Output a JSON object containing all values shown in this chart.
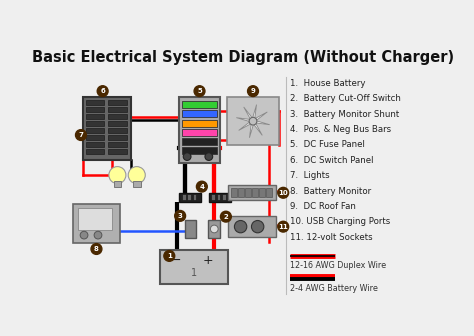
{
  "title": "Basic Electrical System Diagram (Without Charger)",
  "title_fontsize": 10.5,
  "bg_color": "#efefef",
  "legend_items": [
    "1.  House Battery",
    "2.  Battery Cut-Off Switch",
    "3.  Battery Monitor Shunt",
    "4.  Pos. & Neg Bus Bars",
    "5.  DC Fuse Panel",
    "6.  DC Switch Panel",
    "7.  Lights",
    "8.  Battery Monitor",
    "9.  DC Roof Fan",
    "10. USB Charging Ports",
    "11. 12-volt Sockets"
  ],
  "wire_legend_1": "12-16 AWG Duplex Wire",
  "wire_legend_2": "2-4 AWG Battery Wire",
  "brown_circle_color": "#4a2800",
  "circle_text_color": "#ffffff",
  "fuse_colors": [
    "#33cc33",
    "#3366ff",
    "#ff9900",
    "#ff44aa",
    "#222222",
    "#222222"
  ]
}
